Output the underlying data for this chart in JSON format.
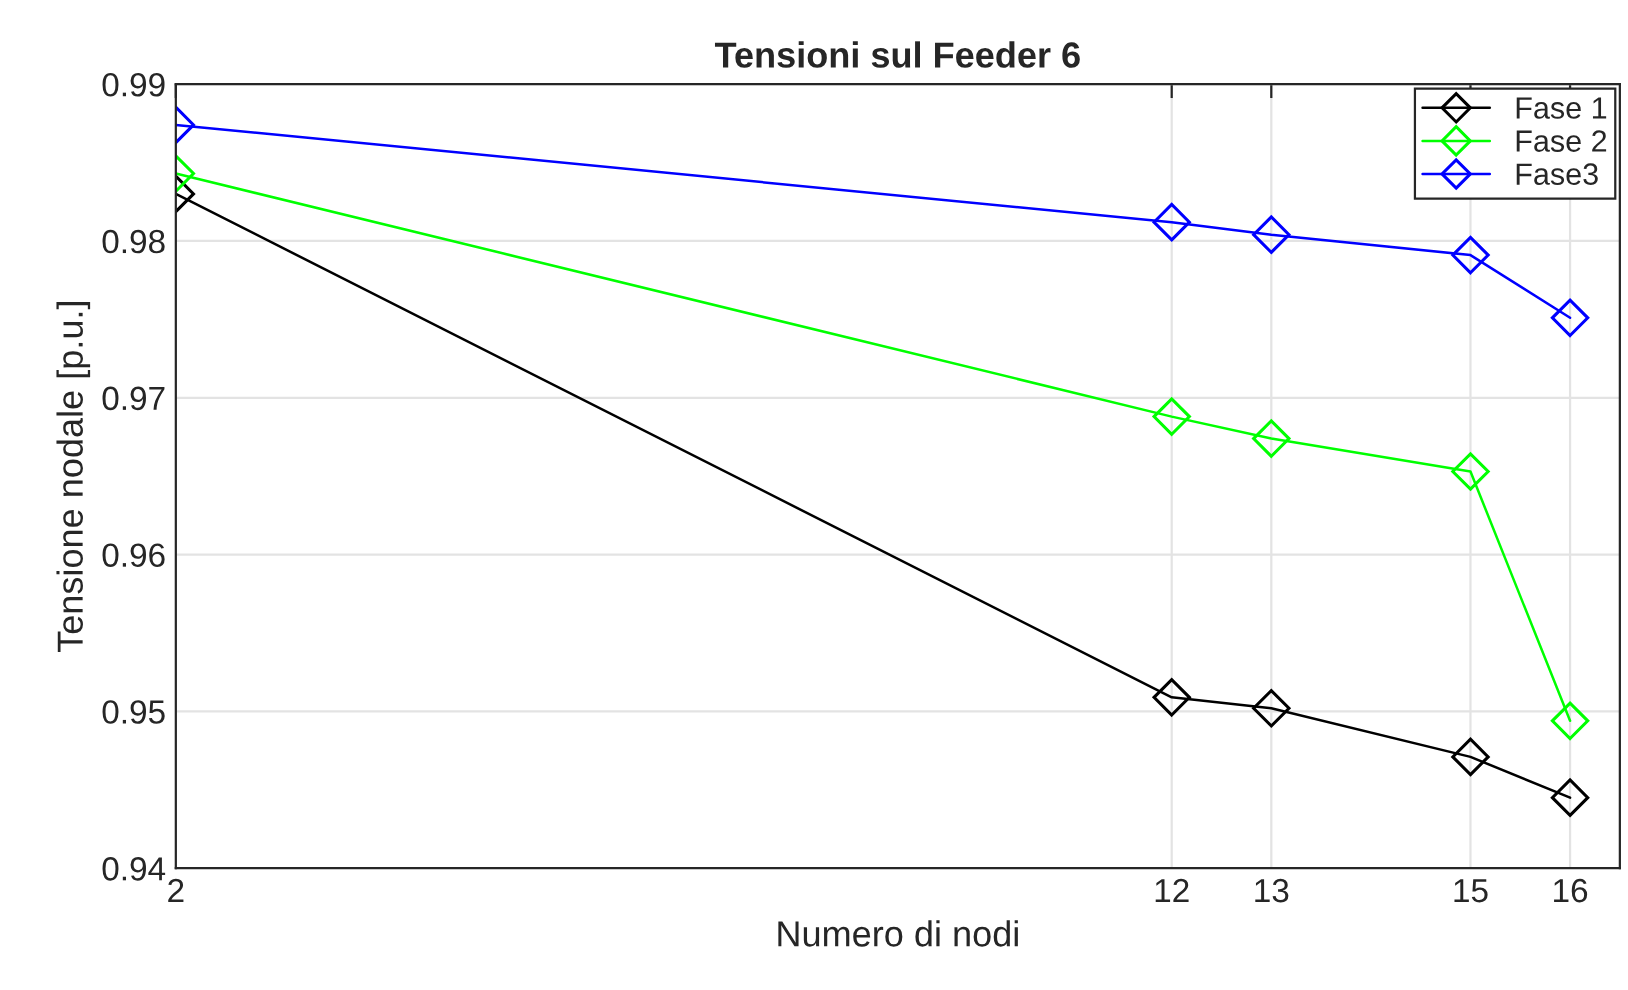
{
  "chart_data": {
    "type": "line",
    "title": "Tensioni sul Feeder 6",
    "xlabel": "Numero di nodi",
    "ylabel": "Tensione nodale [p.u.]",
    "x": [
      2,
      12,
      13,
      15,
      16
    ],
    "series": [
      {
        "name": "Fase 1",
        "color": "#000000",
        "values": [
          0.983,
          0.9509,
          0.9502,
          0.9471,
          0.9445
        ]
      },
      {
        "name": "Fase 2",
        "color": "#00ff00",
        "values": [
          0.9843,
          0.9688,
          0.9674,
          0.9653,
          0.9494
        ]
      },
      {
        "name": "Fase3",
        "color": "#0000ff",
        "values": [
          0.9874,
          0.9812,
          0.9804,
          0.9791,
          0.9751
        ]
      }
    ],
    "xlim": [
      2,
      16.5
    ],
    "xticks": [
      2,
      12,
      13,
      15,
      16
    ],
    "ylim": [
      0.94,
      0.99
    ],
    "yticks": [
      0.94,
      0.95,
      0.96,
      0.97,
      0.98,
      0.99
    ],
    "grid": true,
    "legend": "top right",
    "marker": "diamond",
    "line_style": "solid"
  }
}
